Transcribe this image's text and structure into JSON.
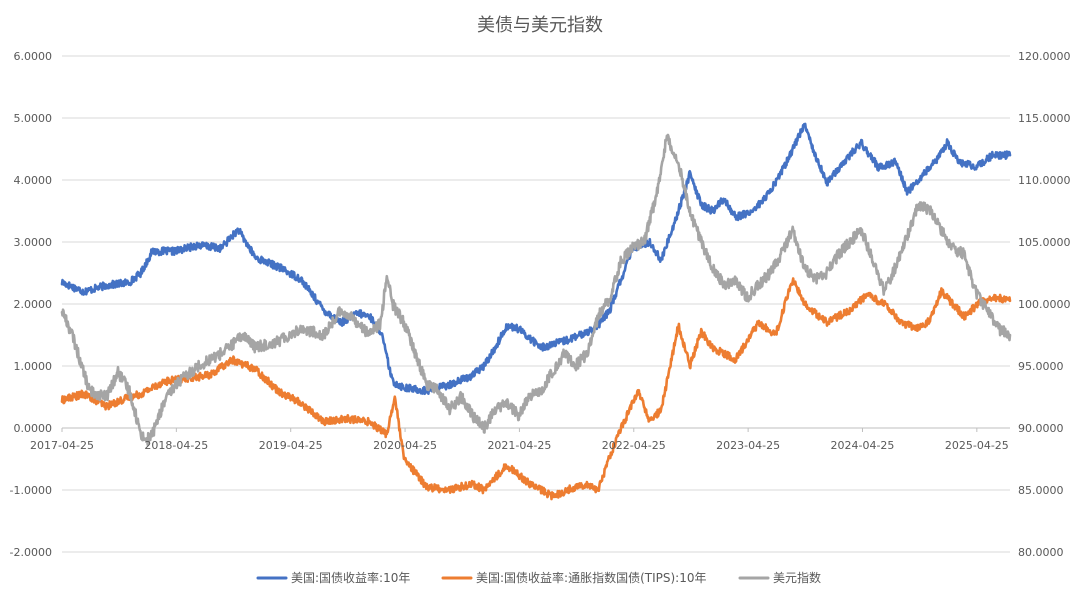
{
  "chart_data": {
    "type": "line",
    "title": "美债与美元指数",
    "y_left": {
      "ticks": [
        "6.0000",
        "5.0000",
        "4.0000",
        "3.0000",
        "2.0000",
        "1.0000",
        "0.0000",
        "-1.0000",
        "-2.0000"
      ],
      "ylim": [
        -2,
        6
      ]
    },
    "y_right": {
      "ticks": [
        "120.0000",
        "115.0000",
        "110.0000",
        "105.0000",
        "100.0000",
        "95.0000",
        "90.0000",
        "85.0000",
        "80.0000"
      ],
      "ylim": [
        80,
        120
      ]
    },
    "x_ticks": [
      "2017-04-25",
      "2018-04-25",
      "2019-04-25",
      "2020-04-25",
      "2021-04-25",
      "2022-04-25",
      "2023-04-25",
      "2024-04-25",
      "2025-04-25"
    ],
    "x_range": [
      2017.31,
      2025.6
    ],
    "grid": true,
    "legend_position": "bottom",
    "series": [
      {
        "name": "美国:国债收益率:10年",
        "axis": "left",
        "color": "#4472C4",
        "x": [
          2017.31,
          2017.5,
          2017.7,
          2017.9,
          2018.0,
          2018.1,
          2018.3,
          2018.5,
          2018.7,
          2018.85,
          2019.0,
          2019.2,
          2019.4,
          2019.6,
          2019.75,
          2019.9,
          2020.0,
          2020.1,
          2020.2,
          2020.3,
          2020.5,
          2020.7,
          2020.9,
          2021.0,
          2021.1,
          2021.2,
          2021.3,
          2021.5,
          2021.7,
          2021.85,
          2022.0,
          2022.1,
          2022.3,
          2022.45,
          2022.55,
          2022.7,
          2022.8,
          2022.9,
          2023.0,
          2023.1,
          2023.2,
          2023.35,
          2023.5,
          2023.65,
          2023.8,
          2023.9,
          2024.0,
          2024.15,
          2024.3,
          2024.45,
          2024.6,
          2024.7,
          2024.8,
          2024.95,
          2025.05,
          2025.15,
          2025.3,
          2025.45,
          2025.6
        ],
        "y": [
          2.35,
          2.2,
          2.3,
          2.35,
          2.5,
          2.85,
          2.85,
          2.95,
          2.9,
          3.2,
          2.75,
          2.6,
          2.4,
          1.9,
          1.7,
          1.85,
          1.8,
          1.55,
          0.75,
          0.65,
          0.6,
          0.7,
          0.85,
          1.0,
          1.3,
          1.65,
          1.6,
          1.3,
          1.4,
          1.5,
          1.65,
          1.9,
          2.9,
          3.0,
          2.7,
          3.5,
          4.1,
          3.6,
          3.5,
          3.7,
          3.4,
          3.5,
          3.8,
          4.3,
          4.9,
          4.4,
          3.95,
          4.3,
          4.6,
          4.2,
          4.3,
          3.8,
          4.0,
          4.3,
          4.6,
          4.3,
          4.2,
          4.4,
          4.4
        ]
      },
      {
        "name": "美国:国债收益率:通胀指数国债(TIPS):10年",
        "axis": "left",
        "color": "#ED7D31",
        "x": [
          2017.31,
          2017.5,
          2017.7,
          2017.9,
          2018.0,
          2018.2,
          2018.4,
          2018.6,
          2018.8,
          2019.0,
          2019.2,
          2019.4,
          2019.6,
          2019.8,
          2020.0,
          2020.15,
          2020.22,
          2020.3,
          2020.5,
          2020.7,
          2020.9,
          2021.0,
          2021.2,
          2021.4,
          2021.6,
          2021.8,
          2021.9,
          2022.0,
          2022.1,
          2022.2,
          2022.35,
          2022.45,
          2022.55,
          2022.7,
          2022.8,
          2022.9,
          2023.0,
          2023.2,
          2023.4,
          2023.55,
          2023.7,
          2023.8,
          2023.9,
          2024.0,
          2024.2,
          2024.35,
          2024.5,
          2024.65,
          2024.8,
          2024.9,
          2025.0,
          2025.1,
          2025.2,
          2025.35,
          2025.5,
          2025.6
        ],
        "y": [
          0.45,
          0.55,
          0.35,
          0.5,
          0.55,
          0.75,
          0.8,
          0.85,
          1.1,
          0.95,
          0.6,
          0.4,
          0.1,
          0.15,
          0.1,
          -0.1,
          0.5,
          -0.5,
          -0.95,
          -1.0,
          -0.9,
          -1.0,
          -0.6,
          -0.9,
          -1.1,
          -0.95,
          -0.9,
          -1.0,
          -0.45,
          0.0,
          0.6,
          0.1,
          0.3,
          1.65,
          1.0,
          1.55,
          1.3,
          1.1,
          1.7,
          1.5,
          2.4,
          2.0,
          1.85,
          1.7,
          1.9,
          2.15,
          2.0,
          1.7,
          1.6,
          1.75,
          2.2,
          2.0,
          1.8,
          2.05,
          2.1,
          2.05
        ]
      },
      {
        "name": "美元指数",
        "axis": "right",
        "color": "#A5A5A5",
        "x": [
          2017.31,
          2017.4,
          2017.55,
          2017.7,
          2017.8,
          2017.9,
          2018.0,
          2018.05,
          2018.1,
          2018.2,
          2018.3,
          2018.5,
          2018.7,
          2018.9,
          2019.0,
          2019.2,
          2019.4,
          2019.6,
          2019.75,
          2019.9,
          2020.0,
          2020.1,
          2020.15,
          2020.2,
          2020.3,
          2020.5,
          2020.6,
          2020.7,
          2020.8,
          2020.9,
          2021.0,
          2021.1,
          2021.2,
          2021.3,
          2021.4,
          2021.5,
          2021.6,
          2021.7,
          2021.8,
          2021.9,
          2022.0,
          2022.1,
          2022.2,
          2022.3,
          2022.4,
          2022.5,
          2022.6,
          2022.7,
          2022.8,
          2022.9,
          2023.0,
          2023.1,
          2023.2,
          2023.3,
          2023.4,
          2023.5,
          2023.6,
          2023.7,
          2023.8,
          2023.9,
          2024.0,
          2024.1,
          2024.2,
          2024.3,
          2024.4,
          2024.5,
          2024.6,
          2024.7,
          2024.8,
          2024.9,
          2025.0,
          2025.1,
          2025.2,
          2025.3,
          2025.4,
          2025.5,
          2025.6
        ],
        "y": [
          99.5,
          97.5,
          93.0,
          92.5,
          94.5,
          93.0,
          89.5,
          89.0,
          89.5,
          92.0,
          93.5,
          95.0,
          96.0,
          97.5,
          96.5,
          97.0,
          98.0,
          97.5,
          99.5,
          98.5,
          97.5,
          98.5,
          102.5,
          100.0,
          98.5,
          93.5,
          93.0,
          91.5,
          92.5,
          91.0,
          90.0,
          91.5,
          92.0,
          91.0,
          92.5,
          93.0,
          94.5,
          96.0,
          95.0,
          96.0,
          99.0,
          100.5,
          103.5,
          104.5,
          105.0,
          108.5,
          113.5,
          111.5,
          107.5,
          105.0,
          103.0,
          101.5,
          102.0,
          100.5,
          101.5,
          102.5,
          104.0,
          106.0,
          103.0,
          102.0,
          102.5,
          104.0,
          105.0,
          106.0,
          103.5,
          101.0,
          103.0,
          105.5,
          108.0,
          107.5,
          106.0,
          104.5,
          104.0,
          101.0,
          99.5,
          98.0,
          97.5
        ]
      }
    ]
  }
}
